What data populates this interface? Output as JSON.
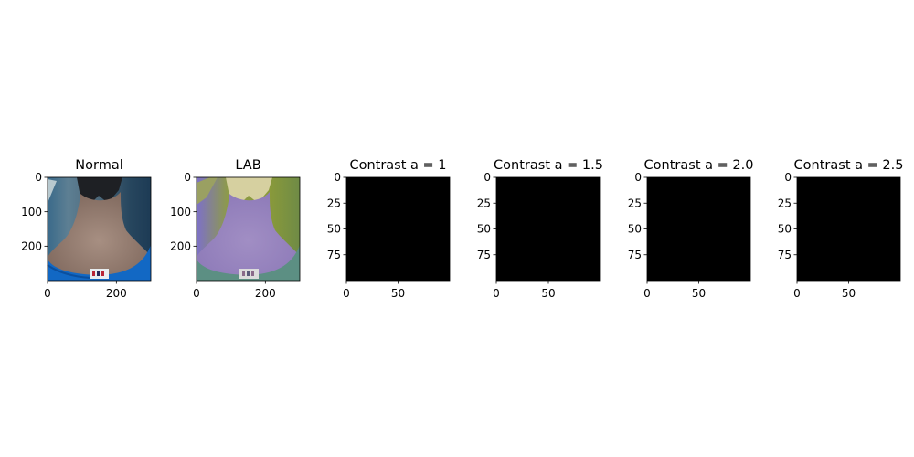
{
  "chart_data": [
    {
      "type": "image",
      "title": "Normal",
      "image_shape": [
        300,
        300
      ],
      "xlim": [
        0,
        300
      ],
      "ylim": [
        300,
        0
      ],
      "xticks": [
        0,
        200
      ],
      "yticks": [
        0,
        100,
        200
      ],
      "content": "photo"
    },
    {
      "type": "image",
      "title": "LAB",
      "image_shape": [
        300,
        300
      ],
      "xlim": [
        0,
        300
      ],
      "ylim": [
        300,
        0
      ],
      "xticks": [
        0,
        200
      ],
      "yticks": [
        0,
        100,
        200
      ],
      "content": "lab-photo"
    },
    {
      "type": "image",
      "title": "Contrast a = 1",
      "image_shape": [
        100,
        100
      ],
      "xlim": [
        0,
        100
      ],
      "ylim": [
        100,
        0
      ],
      "xticks": [
        0,
        50
      ],
      "yticks": [
        0,
        25,
        50,
        75
      ],
      "fill": "#000000"
    },
    {
      "type": "image",
      "title": "Contrast a = 1.5",
      "image_shape": [
        100,
        100
      ],
      "xlim": [
        0,
        100
      ],
      "ylim": [
        100,
        0
      ],
      "xticks": [
        0,
        50
      ],
      "yticks": [
        0,
        25,
        50,
        75
      ],
      "fill": "#000000"
    },
    {
      "type": "image",
      "title": "Contrast a = 2.0",
      "image_shape": [
        100,
        100
      ],
      "xlim": [
        0,
        100
      ],
      "ylim": [
        100,
        0
      ],
      "xticks": [
        0,
        50
      ],
      "yticks": [
        0,
        25,
        50,
        75
      ],
      "fill": "#000000"
    },
    {
      "type": "image",
      "title": "Contrast a = 2.5",
      "image_shape": [
        100,
        100
      ],
      "xlim": [
        0,
        100
      ],
      "ylim": [
        100,
        0
      ],
      "xticks": [
        0,
        50
      ],
      "yticks": [
        0,
        25,
        50,
        75
      ],
      "fill": "#000000"
    }
  ]
}
